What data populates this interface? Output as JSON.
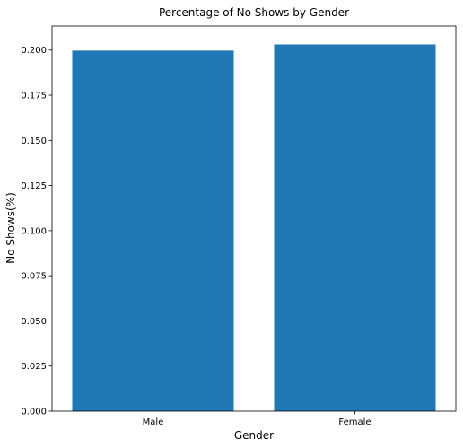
{
  "chart_data": {
    "type": "bar",
    "title": "Percentage of No Shows by Gender",
    "xlabel": "Gender",
    "ylabel": "No Shows(%)",
    "categories": [
      "Male",
      "Female"
    ],
    "values": [
      0.1997,
      0.2031
    ],
    "ylim": [
      0,
      0.2133
    ],
    "yticks": [
      "0.000",
      "0.025",
      "0.050",
      "0.075",
      "0.100",
      "0.125",
      "0.150",
      "0.175",
      "0.200"
    ],
    "grid": false,
    "bar_color": "#1f77b4"
  }
}
